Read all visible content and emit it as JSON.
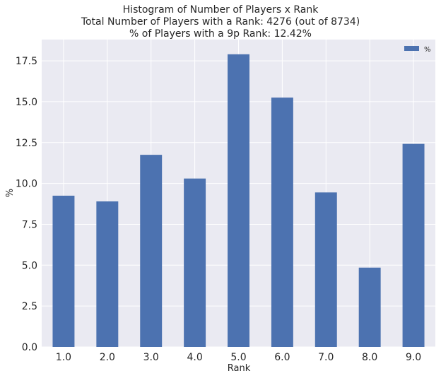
{
  "chart_data": {
    "type": "bar",
    "title_lines": [
      "Histogram of Number of Players x Rank",
      "Total Number of Players with a Rank: 4276 (out of 8734)",
      "% of Players with a 9p Rank: 12.42%"
    ],
    "xlabel": "Rank",
    "ylabel": "%",
    "categories": [
      "1.0",
      "2.0",
      "3.0",
      "4.0",
      "5.0",
      "6.0",
      "7.0",
      "8.0",
      "9.0"
    ],
    "series": [
      {
        "name": "%",
        "values": [
          9.25,
          8.9,
          11.75,
          10.3,
          17.9,
          15.25,
          9.45,
          4.85,
          12.42
        ]
      }
    ],
    "ylim": [
      0,
      18.8
    ],
    "yticks": [
      "0.0",
      "2.5",
      "5.0",
      "7.5",
      "10.0",
      "12.5",
      "15.0",
      "17.5"
    ],
    "ytick_values": [
      0,
      2.5,
      5,
      7.5,
      10,
      12.5,
      15,
      17.5
    ],
    "grid": true,
    "legend_position": "top-right",
    "colors": {
      "bar": "#4c72b0",
      "plot_background": "#eaeaf2",
      "grid": "#ffffff",
      "text": "#262626"
    }
  }
}
